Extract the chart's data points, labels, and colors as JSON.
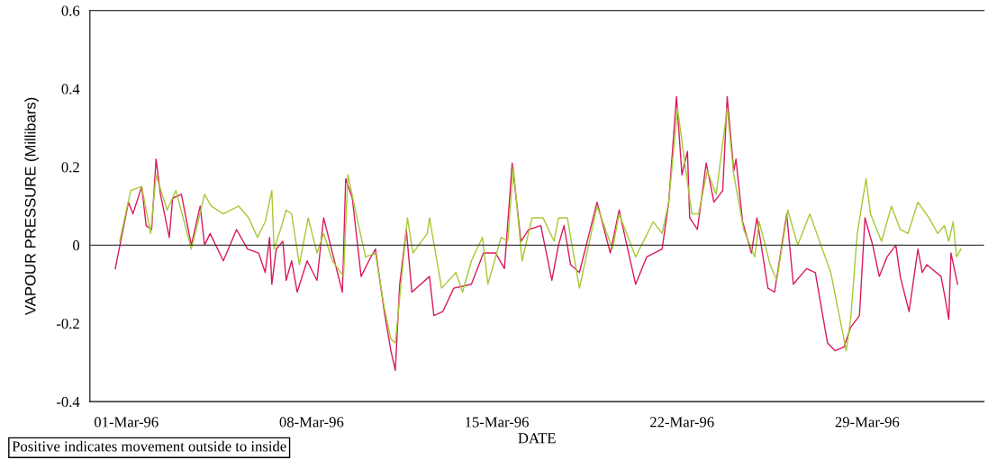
{
  "chart_data": {
    "type": "line",
    "xlabel": "DATE",
    "ylabel": "VAPOUR PRESSURE (Millibars)",
    "annotations": [
      "Positive indicates movement outside to inside"
    ],
    "xlim": [
      "1996-02-28T15:00",
      "1996-04-02T10:00"
    ],
    "xticks": [
      {
        "value": "1996-03-01",
        "label": "01-Mar-96"
      },
      {
        "value": "1996-03-08",
        "label": "08-Mar-96"
      },
      {
        "value": "1996-03-15",
        "label": "15-Mar-96"
      },
      {
        "value": "1996-03-22",
        "label": "22-Mar-96"
      },
      {
        "value": "1996-03-29",
        "label": "29-Mar-96"
      }
    ],
    "ylim": [
      -0.4,
      0.6
    ],
    "yticks": [
      -0.4,
      -0.2,
      0,
      0.2,
      0.4,
      0.6
    ],
    "ref_lines": [
      {
        "axis": "y",
        "value": 0,
        "color": "#404040"
      }
    ],
    "series": [
      {
        "color": "#d81b5e",
        "x": [
          "1996-02-29T14:00",
          "1996-03-01T02:00",
          "1996-03-01T06:00",
          "1996-03-01T14:00",
          "1996-03-01T18:00",
          "1996-03-01T23:00",
          "1996-03-02T03:00",
          "1996-03-02T07:00",
          "1996-03-02T15:00",
          "1996-03-02T18:00",
          "1996-03-03T02:00",
          "1996-03-03T11:00",
          "1996-03-03T19:00",
          "1996-03-03T23:00",
          "1996-03-04T04:00",
          "1996-03-04T16:00",
          "1996-03-05T04:00",
          "1996-03-05T14:00",
          "1996-03-06T00:00",
          "1996-03-06T06:00",
          "1996-03-06T10:00",
          "1996-03-06T12:00",
          "1996-03-06T16:00",
          "1996-03-06T22:00",
          "1996-03-07T01:00",
          "1996-03-07T06:00",
          "1996-03-07T11:00",
          "1996-03-07T20:00",
          "1996-03-08T05:00",
          "1996-03-08T11:00",
          "1996-03-08T19:00",
          "1996-03-09T04:00",
          "1996-03-09T07:00",
          "1996-03-09T13:00",
          "1996-03-09T21:00",
          "1996-03-10T04:00",
          "1996-03-10T10:00",
          "1996-03-10T18:00",
          "1996-03-11T00:00",
          "1996-03-11T04:00",
          "1996-03-11T08:00",
          "1996-03-11T14:00",
          "1996-03-11T19:00",
          "1996-03-12T11:00",
          "1996-03-12T15:00",
          "1996-03-12T23:00",
          "1996-03-13T09:00",
          "1996-03-14T01:00",
          "1996-03-14T12:00",
          "1996-03-14T23:00",
          "1996-03-15T07:00",
          "1996-03-15T14:00",
          "1996-03-15T22:00",
          "1996-03-16T05:00",
          "1996-03-16T16:00",
          "1996-03-17T02:00",
          "1996-03-17T08:00",
          "1996-03-17T13:00",
          "1996-03-17T19:00",
          "1996-03-18T03:00",
          "1996-03-18T19:00",
          "1996-03-19T07:00",
          "1996-03-19T15:00",
          "1996-03-19T22:00",
          "1996-03-20T06:00",
          "1996-03-20T16:00",
          "1996-03-21T06:00",
          "1996-03-21T12:00",
          "1996-03-21T19:00",
          "1996-03-22T00:00",
          "1996-03-22T05:00",
          "1996-03-22T07:00",
          "1996-03-22T14:00",
          "1996-03-22T22:00",
          "1996-03-23T05:00",
          "1996-03-23T13:00",
          "1996-03-23T17:00",
          "1996-03-23T23:00",
          "1996-03-24T01:00",
          "1996-03-24T07:00",
          "1996-03-24T15:00",
          "1996-03-24T20:00",
          "1996-03-25T06:00",
          "1996-03-25T12:00",
          "1996-03-25T23:00",
          "1996-03-26T05:00",
          "1996-03-26T17:00",
          "1996-03-27T01:00",
          "1996-03-27T04:00",
          "1996-03-27T12:00",
          "1996-03-27T19:00",
          "1996-03-28T03:00",
          "1996-03-28T09:00",
          "1996-03-28T17:00",
          "1996-03-28T22:00",
          "1996-03-29T05:00",
          "1996-03-29T11:00",
          "1996-03-29T18:00",
          "1996-03-30T02:00",
          "1996-03-30T06:00",
          "1996-03-30T14:00",
          "1996-03-30T22:00",
          "1996-03-31T02:00",
          "1996-03-31T06:00",
          "1996-03-31T19:00",
          "1996-03-31T23:00",
          "1996-04-01T02:00",
          "1996-04-01T04:00",
          "1996-04-01T10:00"
        ],
        "values": [
          -0.06,
          0.11,
          0.08,
          0.15,
          0.05,
          0.04,
          0.22,
          0.13,
          0.02,
          0.12,
          0.13,
          0.0,
          0.1,
          0.0,
          0.03,
          -0.04,
          0.04,
          -0.01,
          -0.02,
          -0.07,
          0.02,
          -0.1,
          -0.01,
          0.01,
          -0.09,
          -0.04,
          -0.12,
          -0.04,
          -0.09,
          0.07,
          -0.02,
          -0.12,
          0.17,
          0.12,
          -0.08,
          -0.04,
          -0.01,
          -0.17,
          -0.27,
          -0.32,
          -0.1,
          0.04,
          -0.12,
          -0.08,
          -0.18,
          -0.17,
          -0.11,
          -0.1,
          -0.02,
          -0.02,
          -0.06,
          0.21,
          0.01,
          0.04,
          0.05,
          -0.09,
          0.0,
          0.05,
          -0.05,
          -0.07,
          0.11,
          -0.02,
          0.09,
          0.0,
          -0.1,
          -0.03,
          -0.01,
          0.11,
          0.38,
          0.18,
          0.24,
          0.07,
          0.04,
          0.21,
          0.11,
          0.14,
          0.38,
          0.19,
          0.22,
          0.06,
          -0.02,
          0.07,
          -0.11,
          -0.12,
          0.08,
          -0.1,
          -0.06,
          -0.07,
          -0.12,
          -0.25,
          -0.27,
          -0.26,
          -0.21,
          -0.18,
          0.07,
          0.0,
          -0.08,
          -0.03,
          0.0,
          -0.08,
          -0.17,
          -0.01,
          -0.07,
          -0.05,
          -0.08,
          -0.14,
          -0.19,
          -0.02,
          -0.1
        ]
      },
      {
        "color": "#a6c935",
        "x": [
          "1996-02-29T18:00",
          "1996-03-01T04:00",
          "1996-03-01T14:00",
          "1996-03-01T22:00",
          "1996-03-02T03:00",
          "1996-03-02T13:00",
          "1996-03-02T21:00",
          "1996-03-03T11:00",
          "1996-03-03T23:00",
          "1996-03-04T05:00",
          "1996-03-04T16:00",
          "1996-03-05T06:00",
          "1996-03-05T15:00",
          "1996-03-05T23:00",
          "1996-03-06T06:00",
          "1996-03-06T12:00",
          "1996-03-06T14:00",
          "1996-03-06T21:00",
          "1996-03-07T01:00",
          "1996-03-07T06:00",
          "1996-03-07T13:00",
          "1996-03-07T21:00",
          "1996-03-08T05:00",
          "1996-03-08T11:00",
          "1996-03-08T19:00",
          "1996-03-09T05:00",
          "1996-03-09T09:00",
          "1996-03-09T18:00",
          "1996-03-10T01:00",
          "1996-03-10T10:00",
          "1996-03-10T18:00",
          "1996-03-11T00:00",
          "1996-03-11T04:00",
          "1996-03-11T15:00",
          "1996-03-11T20:00",
          "1996-03-12T09:00",
          "1996-03-12T11:00",
          "1996-03-12T22:00",
          "1996-03-13T11:00",
          "1996-03-13T17:00",
          "1996-03-14T01:00",
          "1996-03-14T11:00",
          "1996-03-14T16:00",
          "1996-03-15T04:00",
          "1996-03-15T10:00",
          "1996-03-15T15:00",
          "1996-03-15T23:00",
          "1996-03-16T08:00",
          "1996-03-16T18:00",
          "1996-03-17T04:00",
          "1996-03-17T08:00",
          "1996-03-17T16:00",
          "1996-03-18T03:00",
          "1996-03-18T19:00",
          "1996-03-19T09:00",
          "1996-03-19T15:00",
          "1996-03-20T06:00",
          "1996-03-20T22:00",
          "1996-03-21T06:00",
          "1996-03-21T12:00",
          "1996-03-21T20:00",
          "1996-03-22T05:00",
          "1996-03-22T09:00",
          "1996-03-22T15:00",
          "1996-03-22T23:00",
          "1996-03-23T07:00",
          "1996-03-23T17:00",
          "1996-03-23T23:00",
          "1996-03-24T08:00",
          "1996-03-24T18:00",
          "1996-03-24T22:00",
          "1996-03-25T08:00",
          "1996-03-25T14:00",
          "1996-03-26T00:00",
          "1996-03-26T09:00",
          "1996-03-26T20:00",
          "1996-03-27T06:00",
          "1996-03-27T15:00",
          "1996-03-28T05:00",
          "1996-03-28T09:00",
          "1996-03-28T15:00",
          "1996-03-28T23:00",
          "1996-03-29T03:00",
          "1996-03-29T13:00",
          "1996-03-29T22:00",
          "1996-03-30T06:00",
          "1996-03-30T13:00",
          "1996-03-30T22:00",
          "1996-03-31T08:00",
          "1996-03-31T16:00",
          "1996-03-31T22:00",
          "1996-04-01T02:00",
          "1996-04-01T06:00",
          "1996-04-01T09:00",
          "1996-04-01T13:00"
        ],
        "values": [
          0.01,
          0.14,
          0.15,
          0.03,
          0.18,
          0.09,
          0.14,
          -0.01,
          0.13,
          0.1,
          0.08,
          0.1,
          0.07,
          0.02,
          0.06,
          0.14,
          -0.01,
          0.05,
          0.09,
          0.08,
          -0.05,
          0.07,
          -0.02,
          0.03,
          -0.04,
          -0.08,
          0.18,
          0.06,
          -0.03,
          -0.02,
          -0.16,
          -0.24,
          -0.25,
          0.07,
          -0.02,
          0.03,
          0.07,
          -0.11,
          -0.07,
          -0.12,
          -0.04,
          0.02,
          -0.1,
          0.02,
          0.01,
          0.2,
          -0.04,
          0.07,
          0.07,
          0.01,
          0.07,
          0.07,
          -0.11,
          0.1,
          -0.01,
          0.08,
          -0.03,
          0.06,
          0.03,
          0.11,
          0.35,
          0.16,
          0.08,
          0.08,
          0.19,
          0.13,
          0.35,
          0.18,
          0.04,
          -0.03,
          0.06,
          -0.05,
          -0.09,
          0.09,
          0.0,
          0.08,
          0.0,
          -0.07,
          -0.27,
          -0.19,
          0.03,
          0.17,
          0.08,
          0.01,
          0.1,
          0.04,
          0.03,
          0.11,
          0.07,
          0.03,
          0.05,
          0.01,
          0.06,
          -0.03,
          -0.01
        ]
      }
    ]
  }
}
